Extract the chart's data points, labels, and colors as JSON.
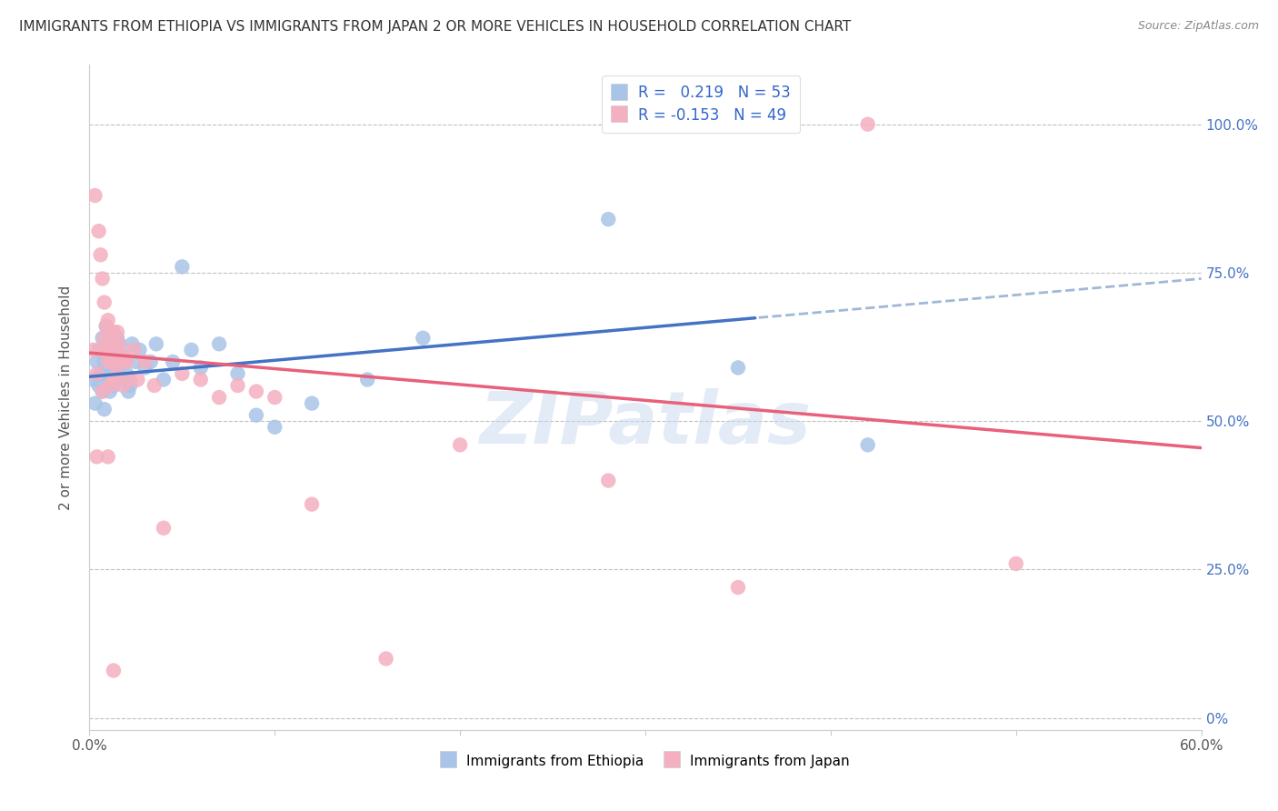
{
  "title": "IMMIGRANTS FROM ETHIOPIA VS IMMIGRANTS FROM JAPAN 2 OR MORE VEHICLES IN HOUSEHOLD CORRELATION CHART",
  "source": "Source: ZipAtlas.com",
  "ylabel": "2 or more Vehicles in Household",
  "xlim": [
    0.0,
    0.6
  ],
  "ylim": [
    -0.02,
    1.1
  ],
  "xtick_labels": [
    "0.0%",
    "",
    "",
    "",
    "",
    "",
    "60.0%"
  ],
  "xtick_vals": [
    0.0,
    0.1,
    0.2,
    0.3,
    0.4,
    0.5,
    0.6
  ],
  "ytick_right_labels": [
    "100.0%",
    "75.0%",
    "50.0%",
    "25.0%",
    "0%"
  ],
  "ytick_vals": [
    1.0,
    0.75,
    0.5,
    0.25,
    0.0
  ],
  "legend_label1": "Immigrants from Ethiopia",
  "legend_label2": "Immigrants from Japan",
  "r1": 0.219,
  "n1": 53,
  "r2": -0.153,
  "n2": 49,
  "color_blue": "#a8c4e8",
  "color_pink": "#f4b0c0",
  "color_blue_line": "#4472c4",
  "color_blue_dash": "#a0b8d8",
  "color_pink_line": "#e8607a",
  "watermark": "ZIPatlas",
  "blue_x": [
    0.002,
    0.003,
    0.004,
    0.005,
    0.005,
    0.006,
    0.007,
    0.007,
    0.008,
    0.008,
    0.009,
    0.009,
    0.01,
    0.01,
    0.011,
    0.011,
    0.012,
    0.012,
    0.013,
    0.013,
    0.014,
    0.014,
    0.015,
    0.015,
    0.016,
    0.016,
    0.017,
    0.018,
    0.019,
    0.02,
    0.021,
    0.022,
    0.023,
    0.025,
    0.027,
    0.03,
    0.033,
    0.036,
    0.04,
    0.045,
    0.05,
    0.055,
    0.06,
    0.07,
    0.08,
    0.09,
    0.1,
    0.12,
    0.15,
    0.18,
    0.28,
    0.35,
    0.42
  ],
  "blue_y": [
    0.57,
    0.53,
    0.6,
    0.56,
    0.62,
    0.58,
    0.64,
    0.55,
    0.6,
    0.52,
    0.58,
    0.66,
    0.61,
    0.57,
    0.63,
    0.55,
    0.59,
    0.65,
    0.56,
    0.61,
    0.62,
    0.58,
    0.64,
    0.57,
    0.63,
    0.59,
    0.57,
    0.61,
    0.6,
    0.58,
    0.55,
    0.56,
    0.63,
    0.6,
    0.62,
    0.59,
    0.6,
    0.63,
    0.57,
    0.6,
    0.76,
    0.62,
    0.59,
    0.63,
    0.58,
    0.51,
    0.49,
    0.53,
    0.57,
    0.64,
    0.84,
    0.59,
    0.46
  ],
  "pink_x": [
    0.002,
    0.003,
    0.004,
    0.005,
    0.006,
    0.006,
    0.007,
    0.008,
    0.008,
    0.009,
    0.009,
    0.01,
    0.01,
    0.011,
    0.011,
    0.012,
    0.013,
    0.013,
    0.014,
    0.015,
    0.015,
    0.016,
    0.017,
    0.018,
    0.019,
    0.02,
    0.022,
    0.024,
    0.026,
    0.03,
    0.035,
    0.04,
    0.05,
    0.06,
    0.07,
    0.08,
    0.09,
    0.1,
    0.12,
    0.16,
    0.2,
    0.28,
    0.35,
    0.42,
    0.5,
    0.004,
    0.007,
    0.01,
    0.013
  ],
  "pink_y": [
    0.62,
    0.88,
    0.58,
    0.82,
    0.78,
    0.62,
    0.74,
    0.7,
    0.64,
    0.66,
    0.62,
    0.67,
    0.6,
    0.63,
    0.56,
    0.6,
    0.65,
    0.57,
    0.62,
    0.65,
    0.58,
    0.63,
    0.6,
    0.56,
    0.61,
    0.6,
    0.57,
    0.62,
    0.57,
    0.6,
    0.56,
    0.32,
    0.58,
    0.57,
    0.54,
    0.56,
    0.55,
    0.54,
    0.36,
    0.1,
    0.46,
    0.4,
    0.22,
    1.0,
    0.26,
    0.44,
    0.55,
    0.44,
    0.08
  ]
}
